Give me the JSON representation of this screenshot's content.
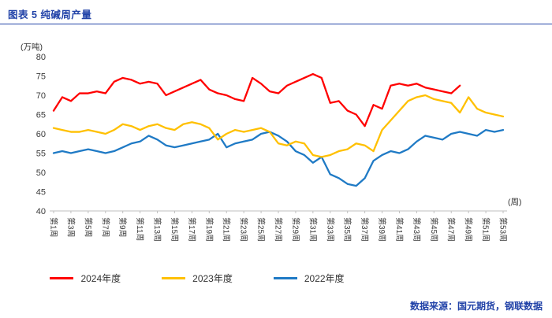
{
  "title": "图表 5 纯碱周产量",
  "source": "数据来源：国元期货，钢联数据",
  "accent_color": "#2243A8",
  "chart_data": {
    "type": "line",
    "title": "纯碱周产量",
    "ylabel": "(万吨)",
    "xlabel": "(周)",
    "ylim": [
      40,
      80
    ],
    "ytick_step": 5,
    "x_range": [
      1,
      53
    ],
    "x_tick_labels": [
      "第1周",
      "第3周",
      "第5周",
      "第7周",
      "第9周",
      "第11周",
      "第13周",
      "第15周",
      "第17周",
      "第19周",
      "第21周",
      "第23周",
      "第25周",
      "第27周",
      "第29周",
      "第31周",
      "第33周",
      "第35周",
      "第37周",
      "第39周",
      "第41周",
      "第43周",
      "第45周",
      "第47周",
      "第49周",
      "第51周",
      "第53周"
    ],
    "grid": false,
    "legend_position": "bottom",
    "axis_color": "#BFBFBF",
    "text_color": "#3a3a3a",
    "series": [
      {
        "name": "2024年度",
        "color": "#FF0000",
        "start_week": 1,
        "values": [
          66,
          69.5,
          68.5,
          70.5,
          70.5,
          71,
          70.5,
          73.5,
          74.5,
          74,
          73,
          73.5,
          73,
          70,
          71,
          72,
          73,
          74,
          71.5,
          70.5,
          70,
          69,
          68.5,
          74.5,
          73,
          71,
          70.5,
          72.5,
          73.5,
          74.5,
          75.5,
          74.5,
          68,
          68.5,
          66,
          65,
          62,
          67.5,
          66.5,
          72.5,
          73,
          72.5,
          73,
          72,
          71.5,
          71,
          70.5,
          72.5
        ]
      },
      {
        "name": "2023年度",
        "color": "#FFC000",
        "start_week": 1,
        "values": [
          61.5,
          61,
          60.5,
          60.5,
          61,
          60.5,
          60,
          61,
          62.5,
          62,
          61,
          62,
          62.5,
          61.5,
          61,
          62.5,
          63,
          62.5,
          61.5,
          58.5,
          60,
          61,
          60.5,
          61,
          61.5,
          60.5,
          57.5,
          57,
          58,
          57.5,
          54.5,
          54,
          54.5,
          55.5,
          56,
          57.5,
          57,
          55.5,
          61,
          63.5,
          66,
          68.5,
          69.5,
          70,
          69,
          68.5,
          68,
          65.5,
          69.5,
          66.5,
          65.5,
          65,
          64.5
        ]
      },
      {
        "name": "2022年度",
        "color": "#1F7AC5",
        "start_week": 1,
        "values": [
          55,
          55.5,
          55,
          55.5,
          56,
          55.5,
          55,
          55.5,
          56.5,
          57.5,
          58,
          59.5,
          58.5,
          57,
          56.5,
          57,
          57.5,
          58,
          58.5,
          60,
          56.5,
          57.5,
          58,
          58.5,
          60,
          60.5,
          59.5,
          58,
          55.5,
          54.5,
          52.5,
          54,
          49.5,
          48.5,
          47,
          46.5,
          48.5,
          53,
          54.5,
          55.5,
          55,
          56,
          58,
          59.5,
          59,
          58.5,
          60,
          60.5,
          60,
          59.5,
          61,
          60.5,
          61
        ]
      }
    ]
  }
}
